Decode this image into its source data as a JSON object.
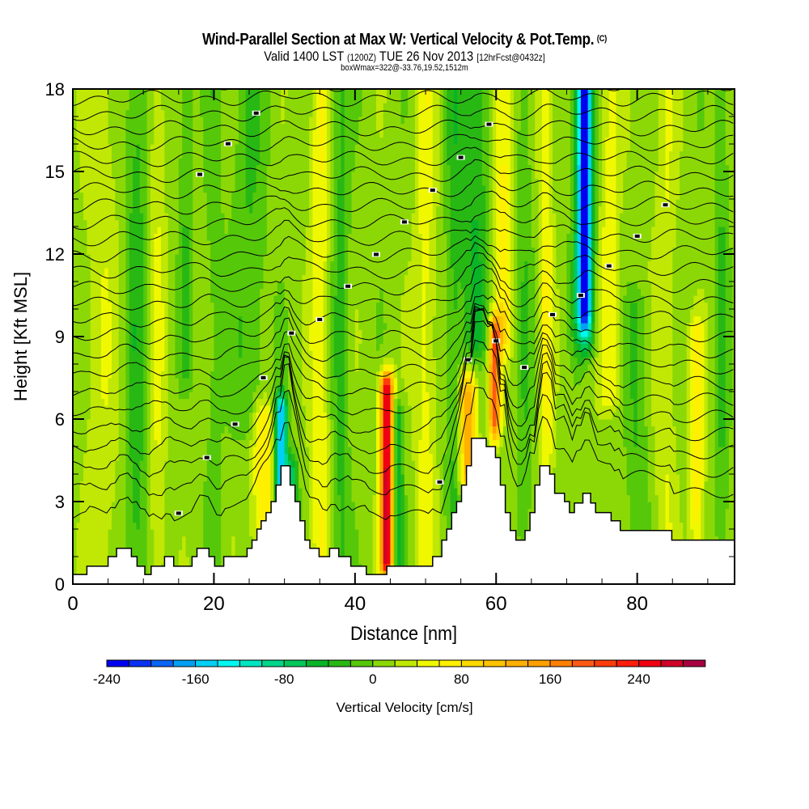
{
  "header": {
    "title": "Wind-Parallel Section at Max W: Vertical Velocity & Pot.Temp.",
    "copyright": "(C)",
    "valid_prefix": "Valid 1400 LST",
    "valid_utc": "(1200Z)",
    "valid_date": "TUE 26 Nov 2013",
    "forecast_info": "[12hrFcst@0432z]",
    "box_info": "boxWmax=322@-33.76,19.52,1512m"
  },
  "chart_data": {
    "type": "heatmap",
    "title": "Wind-Parallel Section at Max W: Vertical Velocity & Pot.Temp.",
    "xlabel": "Distance [nm]",
    "ylabel": "Height [Kft MSL]",
    "xlim": [
      0,
      93.8
    ],
    "ylim": [
      0,
      18
    ],
    "x_ticks": [
      0,
      20,
      40,
      60,
      80
    ],
    "x_tick_labels": [
      "0",
      "20",
      "40",
      "60",
      "80"
    ],
    "x_minor_step": 5,
    "y_ticks": [
      0,
      3,
      6,
      9,
      12,
      15,
      18
    ],
    "y_tick_labels": [
      "0",
      "3",
      "6",
      "9",
      "12",
      "15",
      "18"
    ],
    "y_minor_step": 1,
    "colorbar": {
      "label": "Vertical Velocity [cm/s]",
      "levels_min": -240,
      "levels_step": 20,
      "tick_values": [
        -240,
        -160,
        -80,
        0,
        80,
        160,
        240
      ],
      "tick_labels": [
        "-240",
        "-160",
        "-80",
        "0",
        "80",
        "160",
        "240"
      ],
      "colors": [
        "#0000f0",
        "#0a32f5",
        "#0a64f5",
        "#00a0f5",
        "#00d0f5",
        "#00f8f0",
        "#00e6c0",
        "#00d68a",
        "#00c85a",
        "#0ab428",
        "#28b814",
        "#55c80a",
        "#8cd806",
        "#c0e804",
        "#f0f800",
        "#fff000",
        "#ffd800",
        "#ffc400",
        "#ffb000",
        "#ffa000",
        "#ff8000",
        "#ff5a14",
        "#ff3c0a",
        "#ff1e0a",
        "#f00010",
        "#d00028",
        "#a80040"
      ]
    },
    "background_velocity": 10,
    "velocity_features": [
      {
        "x": 4,
        "w": 2.5,
        "v": 25,
        "y0": 0,
        "y1": 18
      },
      {
        "x": 9,
        "w": 1.5,
        "v": -40,
        "y0": 0,
        "y1": 18
      },
      {
        "x": 12,
        "w": 1.2,
        "v": 30,
        "y0": 0,
        "y1": 18
      },
      {
        "x": 16,
        "w": 1.0,
        "v": -30,
        "y0": 8,
        "y1": 18
      },
      {
        "x": 20,
        "w": 1.2,
        "v": -20,
        "y0": 0,
        "y1": 18
      },
      {
        "x": 25,
        "w": 2.5,
        "v": -30,
        "y0": 6,
        "y1": 18
      },
      {
        "x": 27,
        "w": 1.5,
        "v": 70,
        "y0": 2,
        "y1": 6
      },
      {
        "x": 29.5,
        "w": 0.8,
        "v": -180,
        "y0": 3.5,
        "y1": 6.2
      },
      {
        "x": 31,
        "w": 0.8,
        "v": -90,
        "y0": 1,
        "y1": 4
      },
      {
        "x": 35,
        "w": 1.3,
        "v": 50,
        "y0": 1,
        "y1": 18
      },
      {
        "x": 38,
        "w": 1.2,
        "v": -35,
        "y0": 0,
        "y1": 18
      },
      {
        "x": 44.5,
        "w": 0.9,
        "v": 270,
        "y0": 1,
        "y1": 7
      },
      {
        "x": 46,
        "w": 0.8,
        "v": -70,
        "y0": 1,
        "y1": 6
      },
      {
        "x": 50,
        "w": 1.5,
        "v": 40,
        "y0": 0,
        "y1": 18
      },
      {
        "x": 54,
        "w": 1.2,
        "v": -35,
        "y0": 3,
        "y1": 18
      },
      {
        "x": 56,
        "w": 1.2,
        "v": 120,
        "y0": 4,
        "y1": 7
      },
      {
        "x": 57,
        "w": 2.0,
        "v": -50,
        "y0": 9,
        "y1": 18
      },
      {
        "x": 59.8,
        "w": 0.8,
        "v": 180,
        "y0": 6,
        "y1": 9
      },
      {
        "x": 61,
        "w": 1.3,
        "v": 60,
        "y0": 9,
        "y1": 18
      },
      {
        "x": 64,
        "w": 1.2,
        "v": -25,
        "y0": 2,
        "y1": 18
      },
      {
        "x": 67,
        "w": 1.0,
        "v": 50,
        "y0": 2,
        "y1": 18
      },
      {
        "x": 72.5,
        "w": 0.9,
        "v": -190,
        "y0": 10,
        "y1": 18
      },
      {
        "x": 72.5,
        "w": 1.5,
        "v": -80,
        "y0": 9,
        "y1": 18
      },
      {
        "x": 76,
        "w": 1.5,
        "v": 40,
        "y0": 7,
        "y1": 18
      },
      {
        "x": 80,
        "w": 1.5,
        "v": -30,
        "y0": 0,
        "y1": 10
      },
      {
        "x": 84,
        "w": 1.5,
        "v": 30,
        "y0": 0,
        "y1": 18
      },
      {
        "x": 88.5,
        "w": 1.0,
        "v": 60,
        "y0": 2,
        "y1": 9
      },
      {
        "x": 92,
        "w": 1.0,
        "v": -30,
        "y0": 2,
        "y1": 18
      }
    ],
    "terrain": [
      [
        0,
        0.35
      ],
      [
        2,
        0.35
      ],
      [
        2,
        0.65
      ],
      [
        5,
        0.65
      ],
      [
        5,
        1.0
      ],
      [
        6.2,
        1.0
      ],
      [
        6.2,
        1.3
      ],
      [
        8.3,
        1.3
      ],
      [
        8.3,
        1.0
      ],
      [
        9.1,
        1.0
      ],
      [
        9.1,
        0.65
      ],
      [
        10.2,
        0.65
      ],
      [
        10.2,
        0.35
      ],
      [
        11.1,
        0.35
      ],
      [
        11.1,
        0.65
      ],
      [
        13,
        0.65
      ],
      [
        13,
        1.0
      ],
      [
        14.3,
        1.0
      ],
      [
        14.3,
        0.65
      ],
      [
        16.9,
        0.65
      ],
      [
        16.9,
        1.0
      ],
      [
        17.6,
        1.0
      ],
      [
        17.6,
        1.3
      ],
      [
        19.3,
        1.3
      ],
      [
        19.3,
        1.0
      ],
      [
        20.1,
        1.0
      ],
      [
        20.1,
        0.65
      ],
      [
        21.4,
        0.65
      ],
      [
        21.4,
        1.0
      ],
      [
        24.7,
        1.0
      ],
      [
        24.7,
        1.3
      ],
      [
        25.4,
        1.3
      ],
      [
        25.4,
        1.6
      ],
      [
        26.1,
        1.6
      ],
      [
        26.1,
        2.0
      ],
      [
        26.7,
        2.0
      ],
      [
        26.7,
        2.3
      ],
      [
        27.4,
        2.3
      ],
      [
        27.4,
        2.6
      ],
      [
        28.1,
        2.6
      ],
      [
        28.1,
        3.0
      ],
      [
        28.8,
        3.0
      ],
      [
        28.8,
        3.6
      ],
      [
        29.5,
        3.6
      ],
      [
        29.5,
        4.3
      ],
      [
        30.8,
        4.3
      ],
      [
        30.8,
        3.6
      ],
      [
        31.5,
        3.6
      ],
      [
        31.5,
        3.0
      ],
      [
        32.2,
        3.0
      ],
      [
        32.2,
        2.3
      ],
      [
        32.9,
        2.3
      ],
      [
        32.9,
        1.6
      ],
      [
        33.6,
        1.6
      ],
      [
        33.6,
        1.3
      ],
      [
        34.9,
        1.3
      ],
      [
        34.9,
        1.0
      ],
      [
        36.4,
        1.0
      ],
      [
        36.4,
        1.3
      ],
      [
        37.7,
        1.3
      ],
      [
        37.7,
        1.0
      ],
      [
        39.4,
        1.0
      ],
      [
        39.4,
        0.65
      ],
      [
        41.6,
        0.65
      ],
      [
        41.6,
        0.35
      ],
      [
        44.5,
        0.35
      ],
      [
        44.5,
        0.65
      ],
      [
        51.0,
        0.65
      ],
      [
        51.0,
        1.0
      ],
      [
        52.3,
        1.0
      ],
      [
        52.3,
        1.6
      ],
      [
        53.0,
        1.6
      ],
      [
        53.0,
        2.0
      ],
      [
        53.7,
        2.0
      ],
      [
        53.7,
        2.6
      ],
      [
        54.4,
        2.6
      ],
      [
        54.4,
        3.0
      ],
      [
        55.1,
        3.0
      ],
      [
        55.1,
        3.6
      ],
      [
        55.8,
        3.6
      ],
      [
        55.8,
        4.3
      ],
      [
        56.5,
        4.3
      ],
      [
        56.5,
        5.3
      ],
      [
        58.6,
        5.3
      ],
      [
        58.6,
        5.0
      ],
      [
        59.9,
        5.0
      ],
      [
        59.9,
        4.6
      ],
      [
        60.6,
        4.6
      ],
      [
        60.6,
        3.6
      ],
      [
        61.3,
        3.6
      ],
      [
        61.3,
        2.6
      ],
      [
        62.0,
        2.6
      ],
      [
        62.0,
        1.95
      ],
      [
        62.8,
        1.95
      ],
      [
        62.8,
        1.6
      ],
      [
        64.1,
        1.6
      ],
      [
        64.1,
        1.95
      ],
      [
        64.8,
        1.95
      ],
      [
        64.8,
        2.6
      ],
      [
        65.5,
        2.6
      ],
      [
        65.5,
        3.6
      ],
      [
        66.2,
        3.6
      ],
      [
        66.2,
        4.3
      ],
      [
        67.6,
        4.3
      ],
      [
        67.6,
        4.0
      ],
      [
        68.3,
        4.0
      ],
      [
        68.3,
        3.3
      ],
      [
        69.7,
        3.3
      ],
      [
        69.7,
        3.0
      ],
      [
        70.4,
        3.0
      ],
      [
        70.4,
        2.6
      ],
      [
        71.1,
        2.6
      ],
      [
        71.1,
        2.95
      ],
      [
        72.3,
        2.95
      ],
      [
        72.3,
        3.3
      ],
      [
        73.4,
        3.3
      ],
      [
        73.4,
        2.95
      ],
      [
        74.1,
        2.95
      ],
      [
        74.1,
        2.6
      ],
      [
        76.3,
        2.6
      ],
      [
        76.3,
        2.3
      ],
      [
        77.6,
        2.3
      ],
      [
        77.6,
        1.95
      ],
      [
        84.9,
        1.95
      ],
      [
        84.9,
        1.6
      ],
      [
        93.8,
        1.6
      ]
    ],
    "isentropes": {
      "count": 26,
      "base_height_bottom": 2.2,
      "base_height_top": 18.2,
      "labels_visible": true
    }
  }
}
